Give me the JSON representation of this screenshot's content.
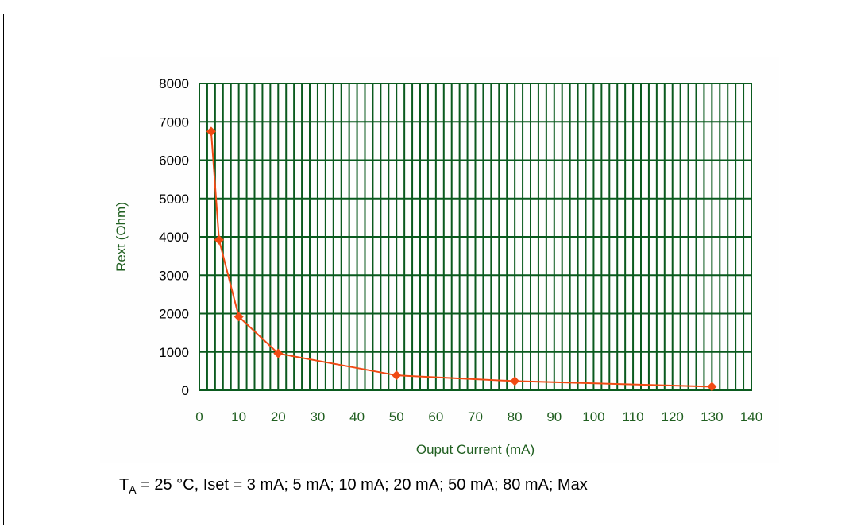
{
  "figure": {
    "top_caption": "",
    "caption": {
      "ta_symbol": "T",
      "ta_subscript": "A",
      "conditions": " = 25 °C,  Iset = 3 mA; 5 mA; 10 mA; 20 mA; 50 mA; 80 mA; Max"
    }
  },
  "colors": {
    "grid": "#0a5a1e",
    "axis_text": "#1f5e1f",
    "series": "#f04a14"
  },
  "chart_data": {
    "type": "line",
    "title": "",
    "xlabel": "Ouput Current (mA)",
    "ylabel": "Rext (Ohm)",
    "xlim": [
      0,
      140
    ],
    "ylim": [
      0,
      8000
    ],
    "x_ticks": [
      0,
      10,
      20,
      30,
      40,
      50,
      60,
      70,
      80,
      90,
      100,
      110,
      120,
      130,
      140
    ],
    "y_ticks": [
      0,
      1000,
      2000,
      3000,
      4000,
      5000,
      6000,
      7000,
      8000
    ],
    "x_minor_step": 2,
    "grid": true,
    "legend": "none",
    "series": [
      {
        "x": [
          3,
          5,
          10,
          20,
          50,
          80,
          130
        ],
        "y": [
          6750,
          3920,
          1920,
          960,
          390,
          240,
          95
        ],
        "marker": "diamond"
      }
    ]
  }
}
